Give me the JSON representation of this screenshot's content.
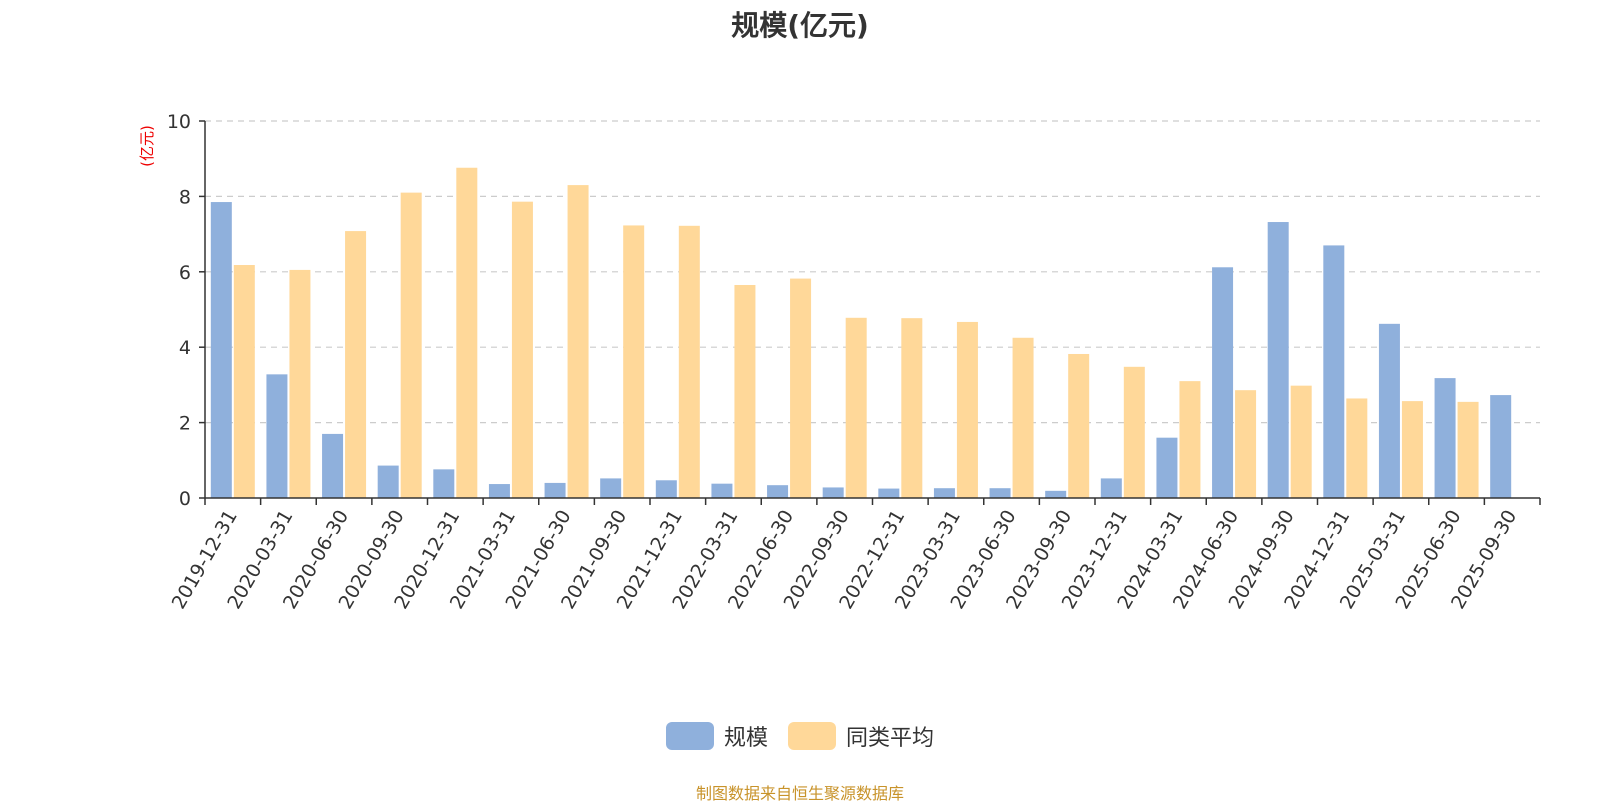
{
  "chart_data": {
    "type": "bar",
    "title": "规模(亿元)",
    "ylabel": "(亿元)",
    "xlabel": "",
    "ylim": [
      0,
      10
    ],
    "yticks": [
      "0",
      "2",
      "4",
      "6",
      "8",
      "10"
    ],
    "grid": true,
    "legend_position": "bottom",
    "categories": [
      "2019-12-31",
      "2020-03-31",
      "2020-06-30",
      "2020-09-30",
      "2020-12-31",
      "2021-03-31",
      "2021-06-30",
      "2021-09-30",
      "2021-12-31",
      "2022-03-31",
      "2022-06-30",
      "2022-09-30",
      "2022-12-31",
      "2023-03-31",
      "2023-06-30",
      "2023-09-30",
      "2023-12-31",
      "2024-03-31",
      "2024-06-30",
      "2024-09-30",
      "2024-12-31",
      "2025-03-31",
      "2025-06-30",
      "2025-09-30"
    ],
    "series": [
      {
        "name": "规模",
        "color": "#8fb0dc",
        "values": [
          7.85,
          3.28,
          1.7,
          0.86,
          0.76,
          0.37,
          0.4,
          0.52,
          0.47,
          0.38,
          0.34,
          0.28,
          0.25,
          0.26,
          0.26,
          0.19,
          0.52,
          1.6,
          6.12,
          7.32,
          6.7,
          4.62,
          3.18,
          2.73
        ]
      },
      {
        "name": "同类平均",
        "color": "#ffd899",
        "values": [
          6.18,
          6.05,
          7.08,
          8.1,
          8.76,
          7.86,
          8.3,
          7.23,
          7.22,
          5.65,
          5.82,
          4.78,
          4.77,
          4.67,
          4.25,
          3.82,
          3.48,
          3.1,
          2.86,
          2.98,
          2.64,
          2.57,
          2.55,
          null
        ]
      }
    ]
  },
  "footer": {
    "source": "制图数据来自恒生聚源数据库"
  }
}
